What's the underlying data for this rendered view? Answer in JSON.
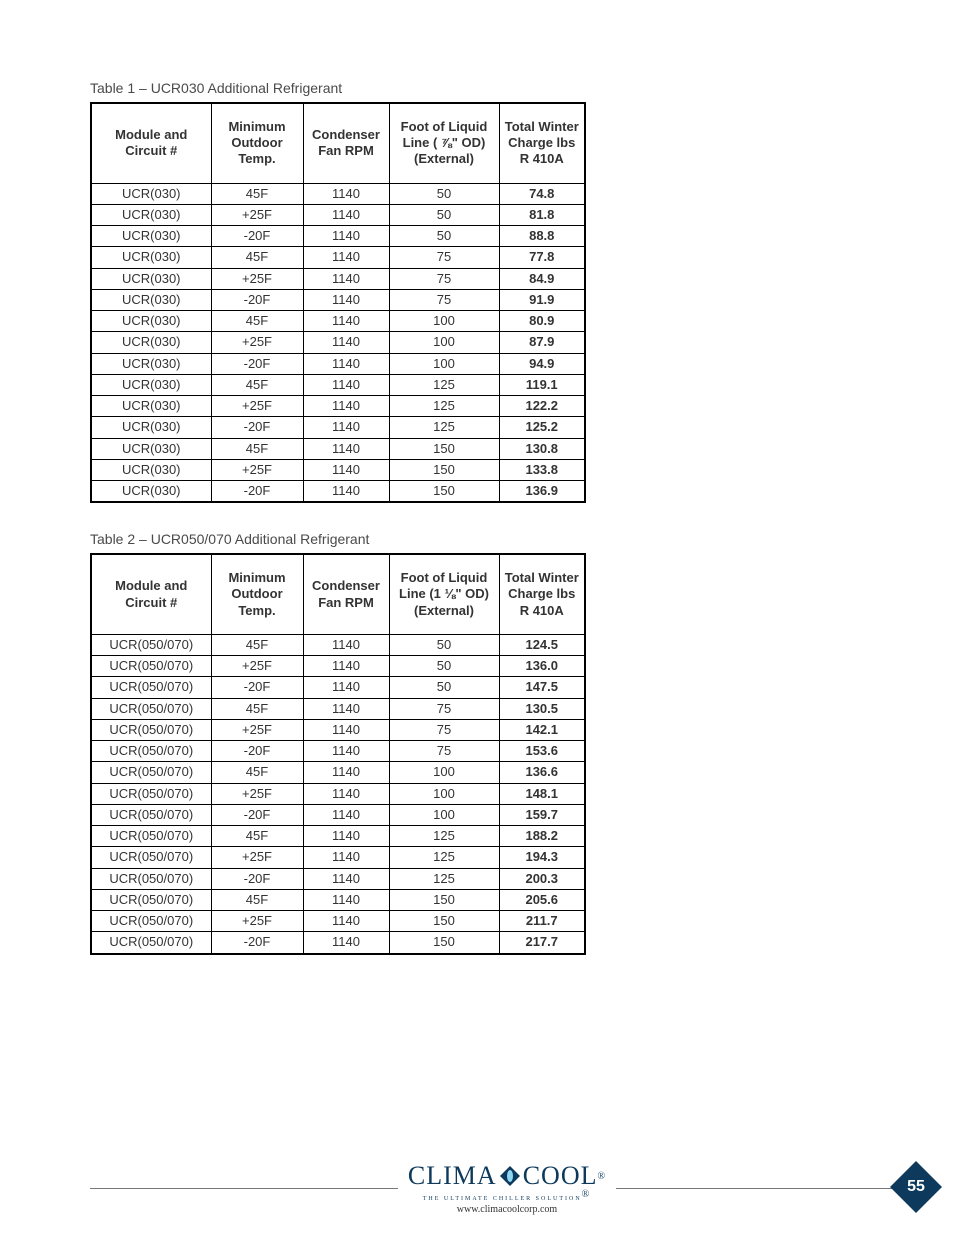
{
  "tables": [
    {
      "caption": "Table 1 – UCR030 Additional Refrigerant",
      "columns": [
        "Module and Circuit #",
        "Minimum Outdoor Temp.",
        "Condenser Fan RPM",
        "Foot of Liquid Line ( ⅞\" OD) (External)",
        "Total Winter Charge lbs R 410A"
      ],
      "rows": [
        [
          "UCR(030)",
          "45F",
          "1140",
          "50",
          "74.8"
        ],
        [
          "UCR(030)",
          "+25F",
          "1140",
          "50",
          "81.8"
        ],
        [
          "UCR(030)",
          "-20F",
          "1140",
          "50",
          "88.8"
        ],
        [
          "UCR(030)",
          "45F",
          "1140",
          "75",
          "77.8"
        ],
        [
          "UCR(030)",
          "+25F",
          "1140",
          "75",
          "84.9"
        ],
        [
          "UCR(030)",
          "-20F",
          "1140",
          "75",
          "91.9"
        ],
        [
          "UCR(030)",
          "45F",
          "1140",
          "100",
          "80.9"
        ],
        [
          "UCR(030)",
          "+25F",
          "1140",
          "100",
          "87.9"
        ],
        [
          "UCR(030)",
          "-20F",
          "1140",
          "100",
          "94.9"
        ],
        [
          "UCR(030)",
          "45F",
          "1140",
          "125",
          "119.1"
        ],
        [
          "UCR(030)",
          "+25F",
          "1140",
          "125",
          "122.2"
        ],
        [
          "UCR(030)",
          "-20F",
          "1140",
          "125",
          "125.2"
        ],
        [
          "UCR(030)",
          "45F",
          "1140",
          "150",
          "130.8"
        ],
        [
          "UCR(030)",
          "+25F",
          "1140",
          "150",
          "133.8"
        ],
        [
          "UCR(030)",
          "-20F",
          "1140",
          "150",
          "136.9"
        ]
      ]
    },
    {
      "caption": "Table 2 – UCR050/070 Additional Refrigerant",
      "columns": [
        "Module and Circuit #",
        "Minimum Outdoor Temp.",
        "Condenser Fan RPM",
        "Foot of Liquid Line (1 ⅛\" OD) (External)",
        "Total Winter Charge lbs R 410A"
      ],
      "rows": [
        [
          "UCR(050/070)",
          "45F",
          "1140",
          "50",
          "124.5"
        ],
        [
          "UCR(050/070)",
          "+25F",
          "1140",
          "50",
          "136.0"
        ],
        [
          "UCR(050/070)",
          "-20F",
          "1140",
          "50",
          "147.5"
        ],
        [
          "UCR(050/070)",
          "45F",
          "1140",
          "75",
          "130.5"
        ],
        [
          "UCR(050/070)",
          "+25F",
          "1140",
          "75",
          "142.1"
        ],
        [
          "UCR(050/070)",
          "-20F",
          "1140",
          "75",
          "153.6"
        ],
        [
          "UCR(050/070)",
          "45F",
          "1140",
          "100",
          "136.6"
        ],
        [
          "UCR(050/070)",
          "+25F",
          "1140",
          "100",
          "148.1"
        ],
        [
          "UCR(050/070)",
          "-20F",
          "1140",
          "100",
          "159.7"
        ],
        [
          "UCR(050/070)",
          "45F",
          "1140",
          "125",
          "188.2"
        ],
        [
          "UCR(050/070)",
          "+25F",
          "1140",
          "125",
          "194.3"
        ],
        [
          "UCR(050/070)",
          "-20F",
          "1140",
          "125",
          "200.3"
        ],
        [
          "UCR(050/070)",
          "45F",
          "1140",
          "150",
          "205.6"
        ],
        [
          "UCR(050/070)",
          "+25F",
          "1140",
          "150",
          "211.7"
        ],
        [
          "UCR(050/070)",
          "-20F",
          "1140",
          "150",
          "217.7"
        ]
      ]
    }
  ],
  "col_classes": [
    "col-module",
    "col-temp",
    "col-rpm",
    "col-liquid",
    "col-charge"
  ],
  "bold_last_col": true,
  "footer": {
    "logo_left": "CLIMA",
    "logo_right": "COOL",
    "tagline": "THE ULTIMATE CHILLER SOLUTION",
    "url": "www.climacoolcorp.com",
    "page_number": "55",
    "brand_color": "#0d3a5c"
  }
}
